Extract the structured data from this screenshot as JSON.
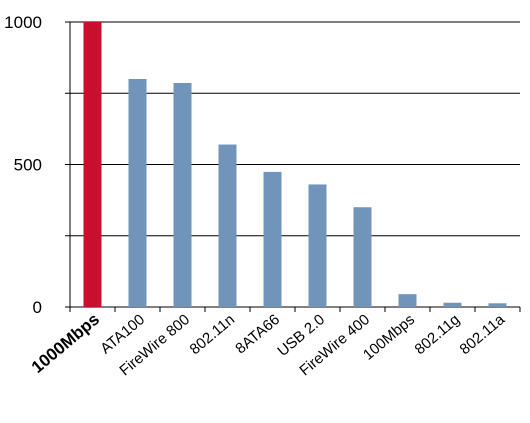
{
  "chart_data": {
    "type": "bar",
    "title": "",
    "xlabel": "",
    "ylabel": "",
    "categories": [
      "1000Mbps",
      "ATA100",
      "FireWire 800",
      "802.11n",
      "8ATA66",
      "USB 2.0",
      "FireWire 400",
      "100Mbps",
      "802.11g",
      "802.11a"
    ],
    "values": [
      1000,
      800,
      786,
      570,
      474,
      430,
      350,
      45,
      15,
      13
    ],
    "ylim": [
      0,
      1000
    ],
    "yticks": [
      0,
      500,
      1000
    ],
    "grid": true,
    "legend": "none",
    "highlight_index": 0,
    "colors": {
      "bar": "#7094ba",
      "highlight_bar": "#c8102e",
      "highlight_label": "#e8601c",
      "grid": "#000000",
      "text": "#000000"
    }
  }
}
